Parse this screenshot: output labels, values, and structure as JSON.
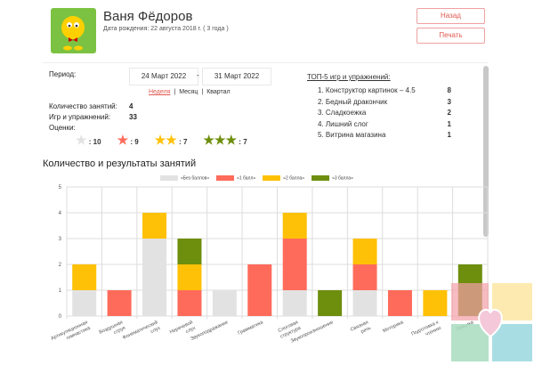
{
  "profile": {
    "name": "Ваня Фёдоров",
    "dob": "Дата рождения: 22 августа 2018 г. ( 3 года )"
  },
  "buttons": {
    "back": "Назад",
    "print": "Печать"
  },
  "period": {
    "label": "Период:",
    "from": "24 Март 2022",
    "sep": "-",
    "to": "31 Март 2022",
    "options": [
      "Неделя",
      "Месяц",
      "Квартал"
    ],
    "active": "Неделя"
  },
  "stats": {
    "sessions_label": "Количество занятий:",
    "sessions": "4",
    "games_label": "Игр и упражнений:",
    "games": "33",
    "ratings_label": "Оценки:"
  },
  "ratings": [
    {
      "stars": 1,
      "color": "#e2e2e2",
      "count": ": 10"
    },
    {
      "stars": 1,
      "color": "#ff6b5b",
      "count": ": 9"
    },
    {
      "stars": 2,
      "color": "#ffc107",
      "count": ": 7"
    },
    {
      "stars": 3,
      "color": "#6e8e0e",
      "count": ": 7"
    }
  ],
  "top5": {
    "title": "ТОП-5 игр и упражнений:",
    "items": [
      {
        "name": "1. Конструктор картинок – 4.5",
        "count": "8"
      },
      {
        "name": "2. Бедный дракончик",
        "count": "3"
      },
      {
        "name": "3. Сладкоежка",
        "count": "2"
      },
      {
        "name": "4. Лишний слог",
        "count": "1"
      },
      {
        "name": "5. Витрина магазина",
        "count": "1"
      }
    ]
  },
  "chart_data": {
    "type": "bar",
    "stacked": true,
    "title": "Количество и результаты занятий",
    "ylim": [
      0,
      5
    ],
    "yticks": [
      "0",
      "1",
      "2",
      "3",
      "4",
      "5"
    ],
    "categories": [
      "Артикуляционная гимнастика",
      "Воздушная струя",
      "Фонематический слух",
      "Неречевой слух",
      "Звукоподражание",
      "Грамматика",
      "Слоговая структура",
      "Звукопроизношение",
      "Связная речь",
      "Моторика",
      "Подготовка к чтению",
      "Лексика"
    ],
    "series": [
      {
        "name": "«Без баллов»",
        "color": "#e2e2e2",
        "values": [
          1,
          0,
          3,
          0,
          1,
          0,
          1,
          0,
          1,
          0,
          0,
          0
        ]
      },
      {
        "name": "«1 балл»",
        "color": "#ff6b5b",
        "values": [
          0,
          1,
          0,
          1,
          0,
          2,
          2,
          0,
          1,
          1,
          0,
          0
        ]
      },
      {
        "name": "«2 балла»",
        "color": "#ffc107",
        "values": [
          1,
          0,
          1,
          1,
          0,
          0,
          1,
          0,
          1,
          0,
          1,
          0
        ]
      },
      {
        "name": "«3 балла»",
        "color": "#6e8e0e",
        "values": [
          0,
          0,
          0,
          1,
          0,
          0,
          0,
          1,
          0,
          0,
          0,
          2
        ]
      }
    ],
    "legend": "top"
  }
}
